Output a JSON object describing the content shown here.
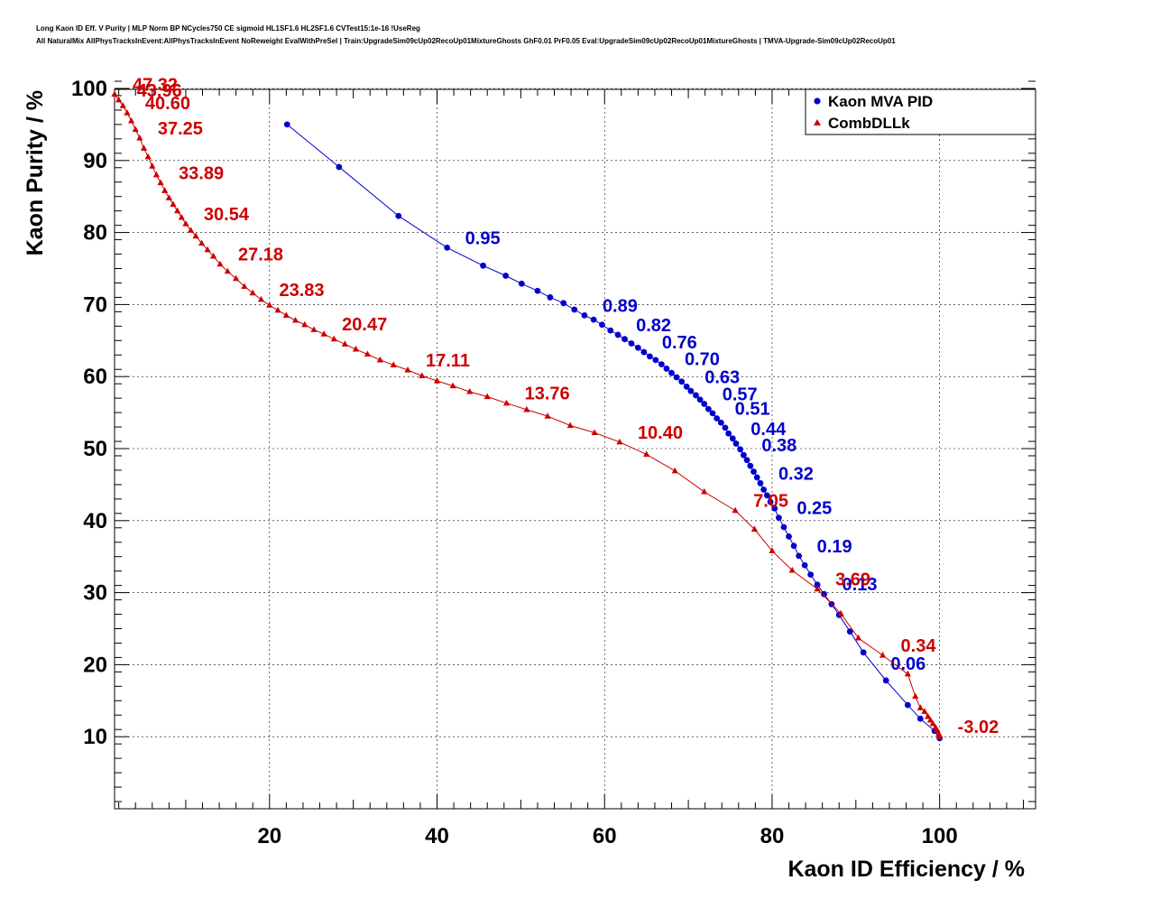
{
  "title_lines": [
    "Long Kaon ID Eff. V Purity | MLP Norm BP NCycles750 CE sigmoid HL1SF1.6 HL2SF1.6 CVTest15:1e-16 !UseReg",
    "All NaturalMix AllPhysTracksInEvent:AllPhysTracksInEvent NoReweight EvalWithPreSel | Train:UpgradeSim09cUp02RecoUp01MixtureGhosts GhF0.01 PrF0.05 Eval:UpgradeSim09cUp02RecoUp01MixtureGhosts | TMVA-Upgrade-Sim09cUp02RecoUp01"
  ],
  "chart_data": {
    "type": "scatter",
    "xlabel": "Kaon ID Efficiency / %",
    "ylabel": "Kaon Purity / %",
    "xlim": [
      1.5,
      111
    ],
    "ylim": [
      0,
      101
    ],
    "xticks": [
      20,
      40,
      60,
      80,
      100
    ],
    "yticks": [
      10,
      20,
      30,
      40,
      50,
      60,
      70,
      80,
      90,
      100
    ],
    "grid": true,
    "legend_position": "top-right",
    "series": [
      {
        "name": "Kaon MVA PID",
        "color": "#0000cc",
        "marker": "circle",
        "x": [
          22.1,
          28.3,
          35.4,
          41.2,
          45.5,
          48.2,
          50.1,
          52.0,
          53.5,
          55.1,
          56.4,
          57.6,
          58.7,
          59.7,
          60.7,
          61.6,
          62.4,
          63.2,
          64.0,
          64.7,
          65.4,
          66.1,
          66.8,
          67.4,
          68.0,
          68.6,
          69.2,
          69.8,
          70.3,
          70.9,
          71.4,
          71.9,
          72.4,
          72.9,
          73.4,
          73.9,
          74.4,
          74.8,
          75.3,
          75.7,
          76.2,
          76.6,
          77.0,
          77.4,
          77.8,
          78.2,
          78.6,
          79.0,
          79.4,
          79.8,
          80.3,
          80.8,
          81.4,
          82.0,
          82.6,
          83.2,
          83.9,
          84.6,
          85.4,
          86.2,
          87.1,
          88.0,
          89.3,
          90.9,
          93.6,
          96.2,
          97.7,
          99.4,
          100.0
        ],
        "y": [
          95.0,
          89.1,
          82.3,
          77.9,
          75.4,
          74.0,
          72.9,
          71.9,
          71.0,
          70.2,
          69.3,
          68.5,
          67.9,
          67.2,
          66.4,
          65.8,
          65.2,
          64.6,
          64.0,
          63.4,
          62.8,
          62.3,
          61.7,
          61.1,
          60.5,
          59.9,
          59.3,
          58.6,
          58.0,
          57.4,
          56.8,
          56.2,
          55.5,
          54.9,
          54.2,
          53.6,
          52.9,
          52.1,
          51.4,
          50.7,
          49.9,
          49.1,
          48.4,
          47.6,
          46.8,
          46.0,
          45.2,
          44.3,
          43.5,
          42.6,
          41.7,
          40.4,
          39.1,
          37.8,
          36.5,
          35.1,
          33.8,
          32.5,
          31.1,
          29.8,
          28.4,
          26.9,
          24.6,
          21.7,
          17.8,
          14.4,
          12.5,
          10.8,
          9.8
        ],
        "labels": [
          {
            "text": "0.95",
            "x": 41.2,
            "y": 77.9
          },
          {
            "text": "0.89",
            "x": 57.6,
            "y": 68.5
          },
          {
            "text": "0.82",
            "x": 61.6,
            "y": 65.8
          },
          {
            "text": "0.76",
            "x": 64.7,
            "y": 63.4
          },
          {
            "text": "0.70",
            "x": 67.4,
            "y": 61.1
          },
          {
            "text": "0.63",
            "x": 69.8,
            "y": 58.6
          },
          {
            "text": "0.57",
            "x": 71.9,
            "y": 56.2
          },
          {
            "text": "0.51",
            "x": 73.4,
            "y": 54.2
          },
          {
            "text": "0.44",
            "x": 75.3,
            "y": 51.4
          },
          {
            "text": "0.38",
            "x": 76.6,
            "y": 49.1
          },
          {
            "text": "0.32",
            "x": 78.6,
            "y": 45.2
          },
          {
            "text": "0.25",
            "x": 80.8,
            "y": 40.4
          },
          {
            "text": "0.19",
            "x": 83.2,
            "y": 35.1
          },
          {
            "text": "0.13",
            "x": 86.2,
            "y": 29.8
          },
          {
            "text": "0.06",
            "x": 92.0,
            "y": 18.8
          }
        ]
      },
      {
        "name": "CombDLLk",
        "color": "#cc0000",
        "marker": "triangle",
        "x": [
          1.5,
          2.0,
          2.5,
          3.0,
          3.5,
          4.0,
          4.5,
          5.0,
          5.5,
          6.0,
          6.5,
          7.0,
          7.5,
          8.0,
          8.5,
          9.0,
          9.5,
          10.0,
          10.6,
          11.2,
          11.9,
          12.6,
          13.3,
          14.1,
          15.0,
          16.0,
          17.0,
          18.0,
          19.0,
          20.0,
          21.0,
          22.0,
          23.1,
          24.2,
          25.3,
          26.5,
          27.7,
          29.0,
          30.3,
          31.7,
          33.2,
          34.8,
          36.5,
          38.2,
          40.0,
          41.9,
          43.9,
          46.0,
          48.3,
          50.7,
          53.2,
          55.9,
          58.8,
          61.8,
          65.0,
          68.4,
          71.9,
          75.6,
          77.9,
          80.0,
          82.4,
          85.4,
          88.2,
          90.3,
          93.2,
          96.2,
          97.1,
          97.7,
          98.2,
          98.6,
          98.9,
          99.2,
          99.5,
          99.7,
          99.9,
          100.0
        ],
        "y": [
          99.2,
          98.4,
          97.6,
          96.6,
          95.5,
          94.3,
          93.1,
          91.7,
          90.5,
          89.2,
          88.0,
          86.9,
          85.8,
          84.8,
          83.9,
          83.0,
          82.1,
          81.2,
          80.3,
          79.5,
          78.5,
          77.6,
          76.7,
          75.6,
          74.6,
          73.6,
          72.5,
          71.6,
          70.7,
          69.9,
          69.2,
          68.5,
          67.8,
          67.2,
          66.5,
          65.9,
          65.2,
          64.5,
          63.8,
          63.1,
          62.3,
          61.6,
          60.9,
          60.1,
          59.4,
          58.7,
          57.9,
          57.2,
          56.3,
          55.4,
          54.5,
          53.2,
          52.2,
          50.9,
          49.2,
          46.9,
          44.0,
          41.4,
          38.8,
          35.8,
          33.1,
          30.5,
          27.1,
          23.7,
          21.3,
          18.7,
          15.6,
          14.0,
          13.5,
          12.8,
          12.3,
          11.8,
          11.3,
          10.9,
          10.4,
          10.0
        ],
        "labels": [
          {
            "text": "47.32",
            "x": 1.5,
            "y": 99.2
          },
          {
            "text": "43.96",
            "x": 2.0,
            "y": 98.4
          },
          {
            "text": "40.60",
            "x": 3.0,
            "y": 96.6
          },
          {
            "text": "37.25",
            "x": 4.5,
            "y": 93.1
          },
          {
            "text": "33.89",
            "x": 7.0,
            "y": 86.9
          },
          {
            "text": "30.54",
            "x": 10.0,
            "y": 81.2
          },
          {
            "text": "27.18",
            "x": 14.1,
            "y": 75.6
          },
          {
            "text": "23.83",
            "x": 19.0,
            "y": 70.7
          },
          {
            "text": "20.47",
            "x": 26.5,
            "y": 65.9
          },
          {
            "text": "17.11",
            "x": 36.5,
            "y": 60.9
          },
          {
            "text": "13.76",
            "x": 48.3,
            "y": 56.3
          },
          {
            "text": "10.40",
            "x": 61.8,
            "y": 50.9
          },
          {
            "text": "7.05",
            "x": 75.6,
            "y": 41.4
          },
          {
            "text": "3.69",
            "x": 85.4,
            "y": 30.5
          },
          {
            "text": "0.34",
            "x": 93.2,
            "y": 21.3
          },
          {
            "text": "-3.02",
            "x": 100.0,
            "y": 10.0
          }
        ]
      }
    ]
  }
}
